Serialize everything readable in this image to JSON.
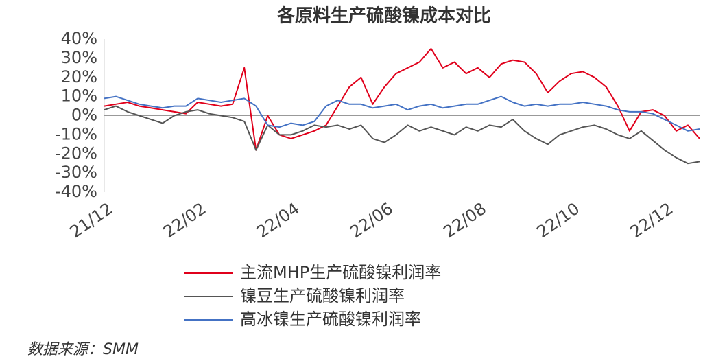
{
  "chart_data": {
    "type": "line",
    "title": "各原料生产硫酸镍成本对比",
    "categories": [
      "21/12",
      null,
      null,
      null,
      null,
      null,
      null,
      null,
      "22/02",
      null,
      null,
      null,
      null,
      null,
      null,
      null,
      "22/04",
      null,
      null,
      null,
      null,
      null,
      null,
      null,
      "22/06",
      null,
      null,
      null,
      null,
      null,
      null,
      null,
      "22/08",
      null,
      null,
      null,
      null,
      null,
      null,
      null,
      "22/10",
      null,
      null,
      null,
      null,
      null,
      null,
      null,
      "22/12",
      null,
      null,
      null
    ],
    "series": [
      {
        "name": "主流MHP生产硫酸镍利润率",
        "color": "#e0001b",
        "values": [
          5,
          6,
          7,
          5,
          4,
          3,
          2,
          1,
          7,
          6,
          5,
          6,
          25,
          -18,
          0,
          -10,
          -12,
          -10,
          -8,
          -5,
          5,
          15,
          20,
          6,
          15,
          22,
          25,
          28,
          35,
          25,
          28,
          22,
          25,
          20,
          27,
          29,
          28,
          22,
          12,
          18,
          22,
          23,
          20,
          15,
          5,
          -8,
          2,
          3,
          0,
          -8,
          -5,
          -12
        ]
      },
      {
        "name": "镍豆生产硫酸镍利润率",
        "color": "#555555",
        "values": [
          3,
          5,
          2,
          0,
          -2,
          -4,
          0,
          2,
          3,
          1,
          0,
          -1,
          -3,
          -18,
          -5,
          -10,
          -10,
          -8,
          -5,
          -6,
          -5,
          -7,
          -5,
          -12,
          -14,
          -10,
          -5,
          -8,
          -6,
          -8,
          -10,
          -6,
          -8,
          -5,
          -6,
          -2,
          -8,
          -12,
          -15,
          -10,
          -8,
          -6,
          -5,
          -7,
          -10,
          -12,
          -8,
          -13,
          -18,
          -22,
          -25,
          -24
        ]
      },
      {
        "name": "高冰镍生产硫酸镍利润率",
        "color": "#4472c4",
        "values": [
          9,
          10,
          8,
          6,
          5,
          4,
          5,
          5,
          9,
          8,
          7,
          8,
          9,
          5,
          -5,
          -6,
          -4,
          -5,
          -3,
          5,
          8,
          6,
          6,
          4,
          5,
          6,
          3,
          5,
          6,
          4,
          5,
          6,
          6,
          8,
          10,
          7,
          5,
          6,
          5,
          6,
          6,
          7,
          6,
          5,
          3,
          2,
          2,
          1,
          -2,
          -5,
          -8,
          -7
        ]
      }
    ],
    "ylim": [
      -40,
      40
    ],
    "yticks": [
      {
        "value": -40,
        "label": "-40%"
      },
      {
        "value": -30,
        "label": "-30%"
      },
      {
        "value": -20,
        "label": "-20%"
      },
      {
        "value": -10,
        "label": "-10%"
      },
      {
        "value": 0,
        "label": "0%"
      },
      {
        "value": 10,
        "label": "10%"
      },
      {
        "value": 20,
        "label": "20%"
      },
      {
        "value": 30,
        "label": "30%"
      },
      {
        "value": 40,
        "label": "40%"
      }
    ],
    "source": "数据来源：SMM"
  }
}
